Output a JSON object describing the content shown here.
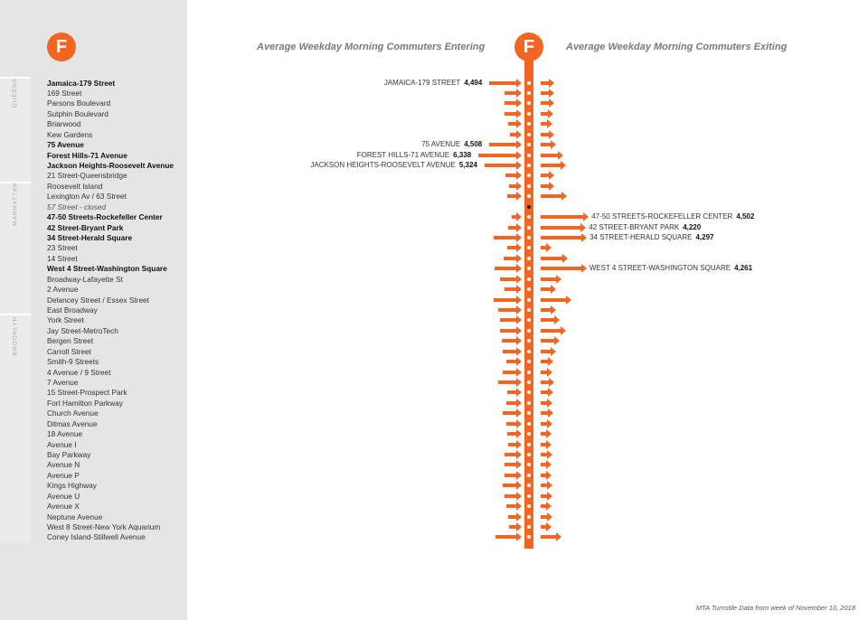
{
  "colors": {
    "line": "#f26522",
    "sidebar": "#e5e5e5"
  },
  "logo_letter": "F",
  "boroughs": [
    "QUEENS",
    "MANHATTAN",
    "BROOKLYN"
  ],
  "header_entering": "Average Weekday Morning Commuters Entering",
  "header_exiting": "Average Weekday Morning Commuters Exiting",
  "footer": "MTA Turnstile Data from week of November 10, 2018",
  "stations": [
    {
      "name": "Jamaica-179 Street",
      "bold": true
    },
    {
      "name": "169 Street"
    },
    {
      "name": "Parsons Boulevard"
    },
    {
      "name": "Sutphin Boulevard"
    },
    {
      "name": "Briarwood"
    },
    {
      "name": "Kew Gardens"
    },
    {
      "name": "75 Avenue",
      "bold": true
    },
    {
      "name": "Forest Hills-71 Avenue",
      "bold": true
    },
    {
      "name": "Jackson Heights-Roosevelt Avenue",
      "bold": true
    },
    {
      "name": "21 Street-Queensbridge"
    },
    {
      "name": "Roosevelt Island"
    },
    {
      "name": "Lexington Av / 63 Street"
    },
    {
      "name": "57 Street - closed",
      "closed": true
    },
    {
      "name": "47-50 Streets-Rockefeller Center",
      "bold": true
    },
    {
      "name": "42 Street-Bryant Park",
      "bold": true
    },
    {
      "name": "34 Street-Herald Square",
      "bold": true
    },
    {
      "name": "23 Street"
    },
    {
      "name": "14 Street"
    },
    {
      "name": "West 4 Street-Washington Square",
      "bold": true
    },
    {
      "name": "Broadway-Lafayette St"
    },
    {
      "name": "2 Avenue"
    },
    {
      "name": "Delancey Street / Essex Street"
    },
    {
      "name": "East Broadway"
    },
    {
      "name": "York Street"
    },
    {
      "name": "Jay Street-MetroTech"
    },
    {
      "name": "Bergen Street"
    },
    {
      "name": "Carroll Street"
    },
    {
      "name": "Smith-9 Streets"
    },
    {
      "name": "4 Avenue / 9 Street"
    },
    {
      "name": "7 Avenue"
    },
    {
      "name": "15 Street-Prospect Park"
    },
    {
      "name": "Fort Hamilton Parkway"
    },
    {
      "name": "Church Avenue"
    },
    {
      "name": "Ditmas Avenue"
    },
    {
      "name": "18 Avenue"
    },
    {
      "name": "Avenue I"
    },
    {
      "name": "Bay Parkway"
    },
    {
      "name": "Avenue N"
    },
    {
      "name": "Avenue P"
    },
    {
      "name": "Kings Highway"
    },
    {
      "name": "Avenue U"
    },
    {
      "name": "Avenue X"
    },
    {
      "name": "Neptune Avenue"
    },
    {
      "name": "West 8 Street-New York Aquarium"
    },
    {
      "name": "Coney Island-Stillwell Avenue"
    }
  ],
  "chart_data": {
    "type": "bar",
    "entering": [
      4494,
      1900,
      2000,
      1900,
      1300,
      1000,
      4508,
      6338,
      5324,
      1800,
      1200,
      1500,
      0,
      800,
      1300,
      3800,
      1500,
      2100,
      3700,
      2700,
      1900,
      3800,
      3100,
      2700,
      2800,
      2400,
      2300,
      1600,
      2300,
      3000,
      1500,
      1600,
      2300,
      1600,
      1500,
      1400,
      2000,
      2000,
      1900,
      2200,
      2000,
      1600,
      1300,
      1200,
      3500
    ],
    "exiting": [
      900,
      900,
      900,
      800,
      700,
      900,
      1000,
      1800,
      2100,
      900,
      900,
      2200,
      0,
      4502,
      4220,
      4297,
      600,
      2300,
      4261,
      1600,
      1000,
      2700,
      1000,
      1400,
      2100,
      1400,
      1000,
      800,
      700,
      900,
      800,
      700,
      800,
      700,
      600,
      600,
      700,
      600,
      600,
      700,
      700,
      600,
      700,
      600,
      1600
    ],
    "annotations_entering": [
      {
        "index": 0,
        "label": "JAMAICA-179 STREET",
        "value": "4,494"
      },
      {
        "index": 6,
        "label": "75 AVENUE",
        "value": "4,508"
      },
      {
        "index": 7,
        "label": "FOREST HILLS-71 AVENUE",
        "value": "6,338"
      },
      {
        "index": 8,
        "label": "JACKSON HEIGHTS-ROOSEVELT AVENUE",
        "value": "5,324"
      }
    ],
    "annotations_exiting": [
      {
        "index": 13,
        "label": "47-50 STREETS-ROCKEFELLER CENTER",
        "value": "4,502"
      },
      {
        "index": 14,
        "label": "42 STREET-BRYANT PARK",
        "value": "4,220"
      },
      {
        "index": 15,
        "label": "34 STREET-HERALD SQUARE",
        "value": "4,297"
      },
      {
        "index": 18,
        "label": "WEST 4 STREET-WASHINGTON SQUARE",
        "value": "4,261"
      }
    ]
  }
}
